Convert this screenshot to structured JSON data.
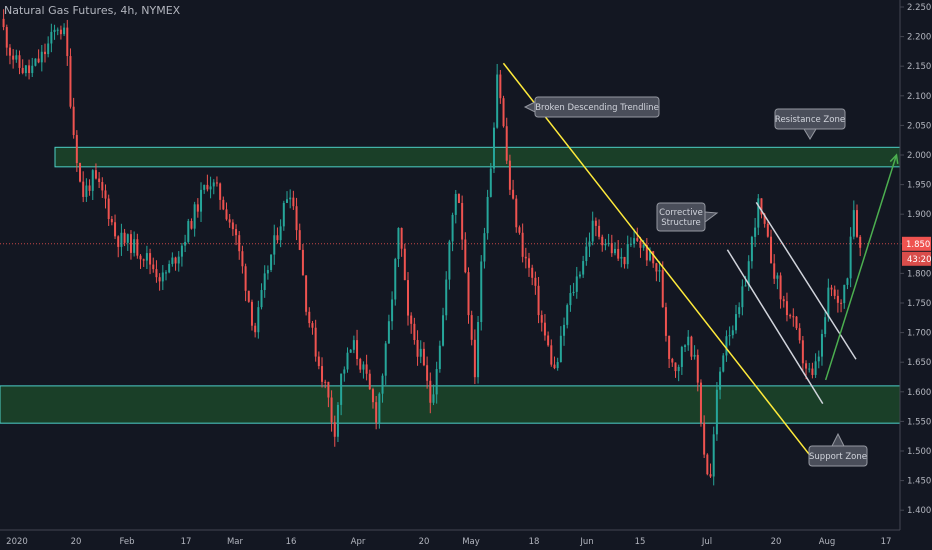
{
  "header": {
    "title": "Natural Gas Futures, 4h, NYMEX"
  },
  "colors": {
    "background": "#131722",
    "up_candle": "#26a69a",
    "down_candle": "#ef5350",
    "axis_text": "#b2b5be",
    "zone_fill": "#1e4d2b",
    "zone_border": "#4dd0c8",
    "trendline": "#ffeb3b",
    "channel_lines": "#d1d4dc",
    "arrow": "#4caf50",
    "callout_fill": "#4a4e5a",
    "price_badge": "#ef5350"
  },
  "chart_data": {
    "type": "candlestick",
    "title": "Natural Gas Futures, 4h, NYMEX",
    "ylim": [
      1.375,
      2.26
    ],
    "y_ticks": [
      "2.250",
      "2.200",
      "2.150",
      "2.100",
      "2.050",
      "2.000",
      "1.950",
      "1.900",
      "1.850",
      "1.800",
      "1.750",
      "1.700",
      "1.650",
      "1.600",
      "1.550",
      "1.500",
      "1.450",
      "1.400"
    ],
    "x_ticks": [
      "2020",
      "20",
      "Feb",
      "17",
      "Mar",
      "16",
      "Apr",
      "20",
      "May",
      "18",
      "Jun",
      "15",
      "Jul",
      "20",
      "Aug",
      "17"
    ],
    "current_price": "1.850",
    "countdown": "43:20",
    "price_path": [
      {
        "x": 0.0,
        "y": 2.23
      },
      {
        "x": 0.3,
        "y": 2.18
      },
      {
        "x": 0.6,
        "y": 2.15
      },
      {
        "x": 1.0,
        "y": 2.14
      },
      {
        "x": 1.5,
        "y": 2.17
      },
      {
        "x": 2.0,
        "y": 2.22
      },
      {
        "x": 2.25,
        "y": 2.2
      },
      {
        "x": 2.5,
        "y": 2.05
      },
      {
        "x": 2.7,
        "y": 1.98
      },
      {
        "x": 2.8,
        "y": 1.93
      },
      {
        "x": 3.2,
        "y": 1.96
      },
      {
        "x": 3.6,
        "y": 1.93
      },
      {
        "x": 4.0,
        "y": 1.86
      },
      {
        "x": 4.5,
        "y": 1.85
      },
      {
        "x": 5.0,
        "y": 1.83
      },
      {
        "x": 5.6,
        "y": 1.79
      },
      {
        "x": 6.2,
        "y": 1.84
      },
      {
        "x": 6.7,
        "y": 1.9
      },
      {
        "x": 7.2,
        "y": 1.96
      },
      {
        "x": 7.6,
        "y": 1.93
      },
      {
        "x": 8.1,
        "y": 1.87
      },
      {
        "x": 8.5,
        "y": 1.78
      },
      {
        "x": 8.8,
        "y": 1.7
      },
      {
        "x": 9.2,
        "y": 1.8
      },
      {
        "x": 9.7,
        "y": 1.89
      },
      {
        "x": 10.0,
        "y": 1.95
      },
      {
        "x": 10.3,
        "y": 1.87
      },
      {
        "x": 10.6,
        "y": 1.74
      },
      {
        "x": 11.0,
        "y": 1.65
      },
      {
        "x": 11.3,
        "y": 1.6
      },
      {
        "x": 11.55,
        "y": 1.53
      },
      {
        "x": 11.8,
        "y": 1.63
      },
      {
        "x": 12.2,
        "y": 1.68
      },
      {
        "x": 12.6,
        "y": 1.63
      },
      {
        "x": 13.0,
        "y": 1.56
      },
      {
        "x": 13.4,
        "y": 1.69
      },
      {
        "x": 13.8,
        "y": 1.88
      },
      {
        "x": 14.1,
        "y": 1.72
      },
      {
        "x": 14.6,
        "y": 1.65
      },
      {
        "x": 14.9,
        "y": 1.58
      },
      {
        "x": 15.3,
        "y": 1.72
      },
      {
        "x": 15.6,
        "y": 1.88
      },
      {
        "x": 15.8,
        "y": 1.96
      },
      {
        "x": 16.1,
        "y": 1.8
      },
      {
        "x": 16.4,
        "y": 1.62
      },
      {
        "x": 16.7,
        "y": 1.86
      },
      {
        "x": 17.0,
        "y": 2.0
      },
      {
        "x": 17.2,
        "y": 2.15
      },
      {
        "x": 17.4,
        "y": 2.05
      },
      {
        "x": 17.6,
        "y": 1.95
      },
      {
        "x": 18.0,
        "y": 1.85
      },
      {
        "x": 18.4,
        "y": 1.79
      },
      {
        "x": 18.8,
        "y": 1.7
      },
      {
        "x": 19.2,
        "y": 1.63
      },
      {
        "x": 19.6,
        "y": 1.74
      },
      {
        "x": 20.0,
        "y": 1.8
      },
      {
        "x": 20.5,
        "y": 1.88
      },
      {
        "x": 21.0,
        "y": 1.85
      },
      {
        "x": 21.5,
        "y": 1.82
      },
      {
        "x": 22.0,
        "y": 1.86
      },
      {
        "x": 22.4,
        "y": 1.83
      },
      {
        "x": 22.8,
        "y": 1.8
      },
      {
        "x": 23.1,
        "y": 1.67
      },
      {
        "x": 23.4,
        "y": 1.64
      },
      {
        "x": 23.8,
        "y": 1.7
      },
      {
        "x": 24.1,
        "y": 1.63
      },
      {
        "x": 24.35,
        "y": 1.5
      },
      {
        "x": 24.55,
        "y": 1.44
      },
      {
        "x": 24.8,
        "y": 1.6
      },
      {
        "x": 25.1,
        "y": 1.7
      },
      {
        "x": 25.5,
        "y": 1.72
      },
      {
        "x": 25.9,
        "y": 1.82
      },
      {
        "x": 26.2,
        "y": 1.92
      },
      {
        "x": 26.6,
        "y": 1.84
      },
      {
        "x": 27.0,
        "y": 1.76
      },
      {
        "x": 27.4,
        "y": 1.72
      },
      {
        "x": 27.8,
        "y": 1.65
      },
      {
        "x": 28.1,
        "y": 1.62
      },
      {
        "x": 28.4,
        "y": 1.68
      },
      {
        "x": 28.7,
        "y": 1.78
      },
      {
        "x": 29.0,
        "y": 1.74
      },
      {
        "x": 29.3,
        "y": 1.8
      },
      {
        "x": 29.5,
        "y": 1.92
      },
      {
        "x": 29.75,
        "y": 1.84
      }
    ],
    "zones": [
      {
        "name": "Resistance Zone",
        "y_low": 1.98,
        "y_high": 2.013
      },
      {
        "name": "Support Zone",
        "y_low": 1.547,
        "y_high": 1.61
      }
    ],
    "trendline": {
      "label": "Broken Descending Trendline",
      "from": [
        17.35,
        2.155
      ],
      "to": [
        28.0,
        1.49
      ]
    },
    "channel": {
      "label": "Corrective Structure",
      "upper": {
        "from": [
          26.1,
          1.92
        ],
        "to": [
          29.55,
          1.655
        ]
      },
      "lower": {
        "from": [
          25.1,
          1.84
        ],
        "to": [
          28.4,
          1.58
        ]
      }
    },
    "projection_arrow": {
      "from": [
        28.5,
        1.62
      ],
      "to": [
        30.95,
        2.0
      ]
    },
    "annotations": [
      {
        "text": "Broken Descending Trendline"
      },
      {
        "text": "Resistance Zone"
      },
      {
        "text": "Corrective Structure"
      },
      {
        "text": "Support Zone"
      }
    ]
  }
}
